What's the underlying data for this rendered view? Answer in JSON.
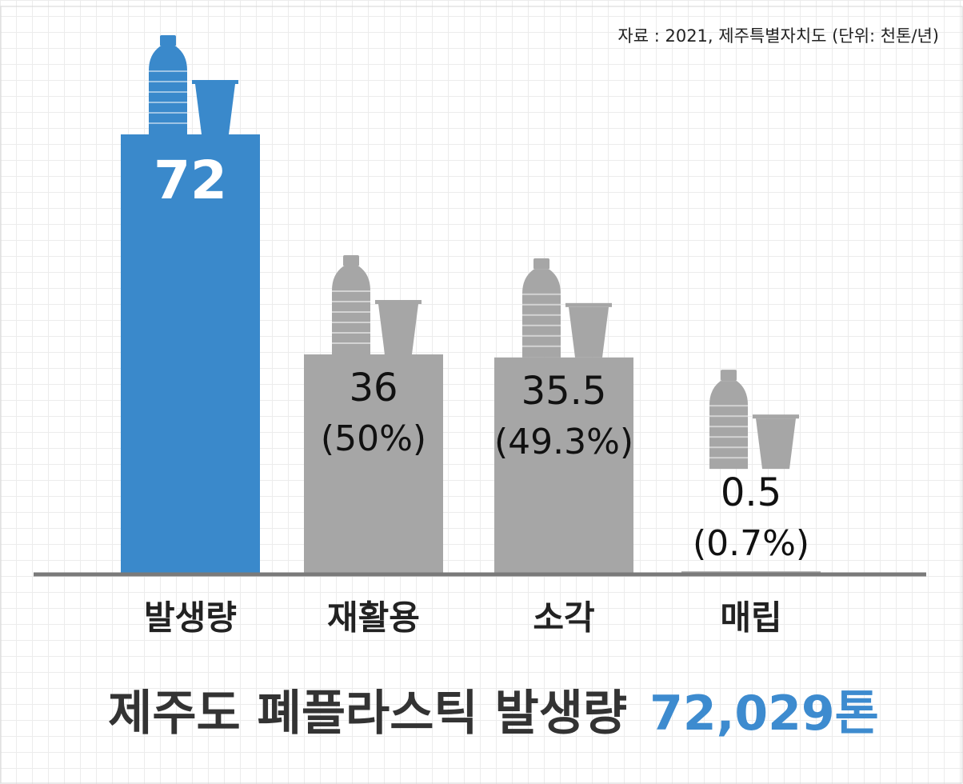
{
  "chart_data": {
    "type": "bar",
    "source": "자료 : 2021, 제주특별자치도 (단위: 천톤/년)",
    "title": "제주도 폐플라스틱 발생량",
    "title_highlight": "72,029톤",
    "categories": [
      "발생량",
      "재활용",
      "소각",
      "매립"
    ],
    "values": [
      72,
      36,
      35.5,
      0.5
    ],
    "share_labels": [
      null,
      "(50%)",
      "(49.3%)",
      "(0.7%)"
    ],
    "colors": [
      "#3a89cb",
      "#a6a6a6",
      "#a6a6a6",
      "#a6a6a6"
    ],
    "highlight_color": "#3d8bcf",
    "ylim": [
      0,
      72
    ]
  }
}
